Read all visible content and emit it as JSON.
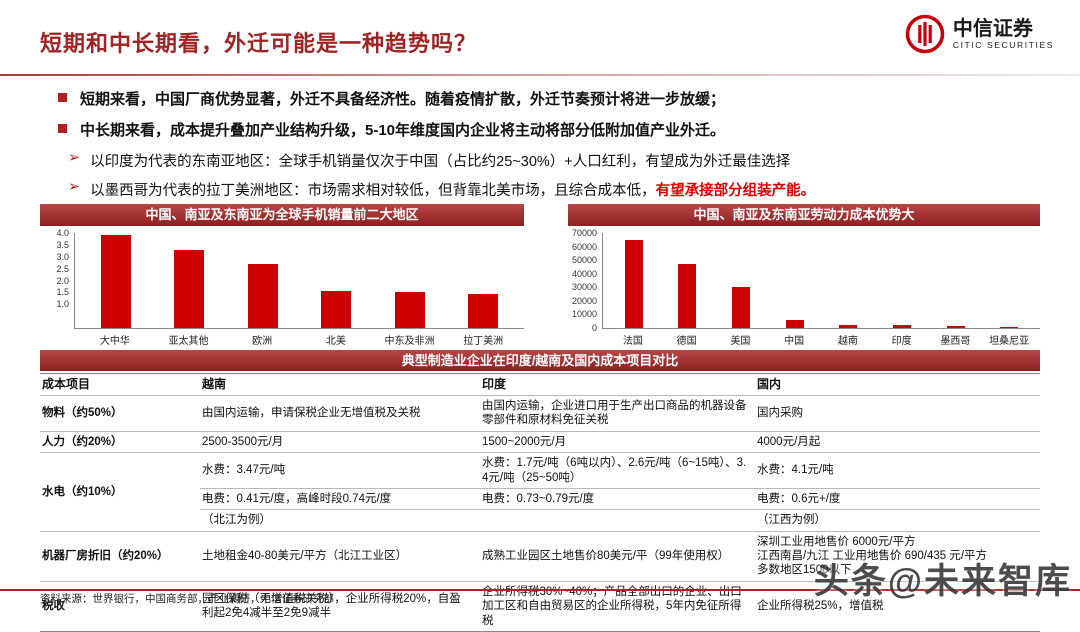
{
  "colors": {
    "accent": "#b02020",
    "bar": "#cc0000",
    "highlight": "#e60000",
    "brand_red": "#c7000b"
  },
  "brand": {
    "name_cn": "中信证券",
    "name_en": "CITIC SECURITIES"
  },
  "header": {
    "title": "短期和中长期看，外迁可能是一种趋势吗？"
  },
  "bullets": {
    "b1": "短期来看，中国厂商优势显著，外迁不具备经济性。随着疫情扩散，外迁节奏预计将进一步放缓；",
    "b2": "中长期来看，成本提升叠加产业结构升级，5-10年维度国内企业将主动将部分低附加值产业外迁。",
    "arrow": "➢",
    "s1": "以印度为代表的东南亚地区：全球手机销量仅次于中国（占比约25~30%）+人口红利，有望成为外迁最佳选择",
    "s2_main": "以墨西哥为代表的拉丁美洲地区：市场需求相对较低，但背靠北美市场，且综合成本低，",
    "s2_highlight": "有望承接部分组装产能。"
  },
  "chart_data": [
    {
      "type": "bar",
      "title": "中国、南亚及东南亚为全球手机销量前二大地区",
      "categories": [
        "大中华",
        "亚太其他",
        "欧洲",
        "北美",
        "中东及非洲",
        "拉丁美洲"
      ],
      "values": [
        3.9,
        3.3,
        2.7,
        1.55,
        1.5,
        1.45
      ],
      "ylim": [
        0,
        4.0
      ],
      "yticks": [
        4.0,
        3.5,
        3.0,
        2.5,
        2.0,
        1.5,
        1.0
      ],
      "ytick_labels": [
        "4.0",
        "3.5",
        "3.0",
        "2.5",
        "2.0",
        "1.5",
        "1.0"
      ],
      "xlabel": "",
      "ylabel": "",
      "grid": false,
      "legend": "none"
    },
    {
      "type": "bar",
      "title": "中国、南亚及东南亚劳动力成本优势大",
      "categories": [
        "法国",
        "德国",
        "美国",
        "中国",
        "越南",
        "印度",
        "墨西哥",
        "坦桑尼亚"
      ],
      "values": [
        65000,
        47000,
        30000,
        6000,
        2500,
        2000,
        1500,
        800
      ],
      "ylim": [
        0,
        70000
      ],
      "yticks": [
        70000,
        60000,
        50000,
        40000,
        30000,
        20000,
        10000,
        0
      ],
      "ytick_labels": [
        "70000",
        "60000",
        "50000",
        "40000",
        "30000",
        "20000",
        "10000",
        "0"
      ],
      "xlabel": "",
      "ylabel": "",
      "grid": false,
      "legend": "none"
    }
  ],
  "table": {
    "title": "典型制造业企业在印度/越南及国内成本项目对比",
    "headers": [
      "成本项目",
      "越南",
      "印度",
      "国内"
    ],
    "rows": [
      {
        "item": "物料（约50%）",
        "vietnam": "由国内运输，申请保税企业无增值税及关税",
        "india": "由国内运输，企业进口用于生产出口商品的机器设备零部件和原材料免征关税",
        "domestic": "国内采购"
      },
      {
        "item": "人力（约20%）",
        "vietnam": "2500-3500元/月",
        "india": "1500~2000元/月",
        "domestic": "4000元/月起"
      },
      {
        "item": "水电（约10%）",
        "vietnam": "水费：3.47元/吨",
        "india": "水费：1.7元/吨（6吨以内）、2.6元/吨（6~15吨）、3.4元/吨（25~50吨）",
        "domestic": "水费：4.1元/吨"
      },
      {
        "item": "",
        "vietnam": "电费：0.41元/度，高峰时段0.74元/度",
        "india": "电费：0.73~0.79元/度",
        "domestic": "电费：0.6元+/度"
      },
      {
        "item": "",
        "vietnam": "（北江为例）",
        "india": "",
        "domestic": "（江西为例）"
      },
      {
        "item": "机器厂房折旧（约20%）",
        "vietnam": "土地租金40-80美元/平方（北江工业区）",
        "india": "成熟工业园区土地售价80美元/平（99年使用权）",
        "domestic_lines": [
          "深圳工业用地售价 6000元/平方",
          "江西南昌/九江 工业用地售价 690/435 元/平方",
          "多数地区1500以下"
        ]
      },
      {
        "item": "税收",
        "vietnam": "园区保税（无增值税关税），企业所得税20%，自盈利起2免4减半至2免9减半",
        "india": "企业所得税30%~40%；产品全部出口的企业、出口加工区和自由贸易区的企业所得税，5年内免征所得税",
        "domestic": "企业所得税25%，增值税"
      }
    ]
  },
  "footer": {
    "source": "资料来源：世界银行，中国商务部，产业调研，中信证券研究部",
    "watermark": "头条@未来智库"
  }
}
